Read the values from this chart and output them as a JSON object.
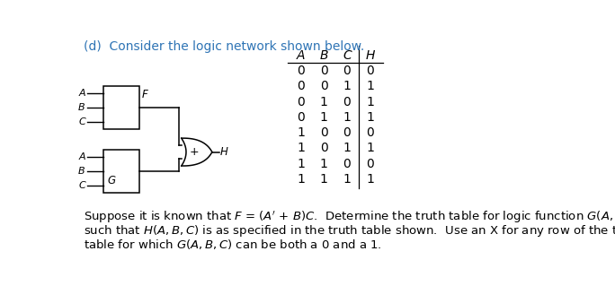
{
  "title": "(d)  Consider the logic network shown below.",
  "title_color": "#2E74B5",
  "table_headers": [
    "A",
    "B",
    "C",
    "H"
  ],
  "table_data": [
    [
      0,
      0,
      0,
      0
    ],
    [
      0,
      0,
      1,
      1
    ],
    [
      0,
      1,
      0,
      1
    ],
    [
      0,
      1,
      1,
      1
    ],
    [
      1,
      0,
      0,
      0
    ],
    [
      1,
      0,
      1,
      1
    ],
    [
      1,
      1,
      0,
      0
    ],
    [
      1,
      1,
      1,
      1
    ]
  ],
  "gate_F_label": "F",
  "gate_G_label": "G",
  "gate_H_label": "H",
  "or_gate_label": "+",
  "inputs_top": [
    "A",
    "B",
    "C"
  ],
  "inputs_bot": [
    "A",
    "B",
    "C"
  ],
  "background_color": "#ffffff",
  "line_color": "#000000",
  "font_size_title": 10,
  "font_size_body": 9.5,
  "font_size_table": 10,
  "font_size_circuit": 8.5,
  "font_size_inputs": 8
}
